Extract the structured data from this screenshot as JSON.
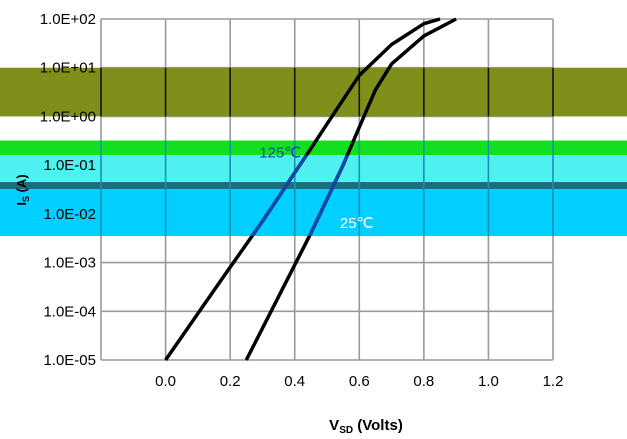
{
  "chart_data": {
    "type": "line",
    "title": "",
    "xlabel": "V",
    "xlabel_sub": "SD",
    "xlabel_suffix": " (Volts)",
    "ylabel": "I",
    "ylabel_sub": "S",
    "ylabel_suffix": " (A)",
    "xlim": [
      -0.2,
      1.2
    ],
    "ylim": [
      1e-05,
      100
    ],
    "y_scale": "log",
    "grid": true,
    "x_ticks": [
      0.0,
      0.2,
      0.4,
      0.6,
      0.8,
      1.0,
      1.2
    ],
    "x_tick_labels": [
      "0.0",
      "0.2",
      "0.4",
      "0.6",
      "0.8",
      "1.0",
      "1.2"
    ],
    "y_ticks": [
      1e-05,
      0.0001,
      0.001,
      0.01,
      0.1,
      1,
      10,
      100
    ],
    "y_tick_labels": [
      "1.0E-05",
      "1.0E-04",
      "1.0E-03",
      "1.0E-02",
      "1.0E-01",
      "1.0E+00",
      "1.0E+01",
      "1.0E+02"
    ],
    "series": [
      {
        "name": "125℃",
        "x": [
          0.0,
          0.1,
          0.2,
          0.3,
          0.35,
          0.4,
          0.45,
          0.5,
          0.55,
          0.6,
          0.7,
          0.8,
          0.85
        ],
        "y": [
          1e-05,
          9e-05,
          0.0008,
          0.007,
          0.022,
          0.07,
          0.22,
          0.7,
          2.2,
          7,
          30,
          80,
          100
        ]
      },
      {
        "name": "25℃",
        "x": [
          0.25,
          0.35,
          0.45,
          0.5,
          0.55,
          0.6,
          0.65,
          0.7,
          0.8,
          0.9
        ],
        "y": [
          1e-05,
          0.0002,
          0.004,
          0.02,
          0.1,
          0.6,
          3.5,
          12,
          45,
          100
        ]
      }
    ],
    "annotations": [
      {
        "text": "125℃",
        "x": 0.29,
        "y": 0.18
      },
      {
        "text": "25℃",
        "x": 0.54,
        "y": 0.0065
      }
    ],
    "overlay_bands": [
      {
        "y_from": 1.0,
        "y_to": 10,
        "color": "#808f1a"
      },
      {
        "y_from": 0.16,
        "y_to": 0.32,
        "color": "#10e020"
      },
      {
        "y_from": 0.045,
        "y_to": 0.16,
        "color": "#4ff0f0"
      },
      {
        "y_from": 0.032,
        "y_to": 0.045,
        "color": "#1a6f7f"
      },
      {
        "y_from": 0.0035,
        "y_to": 0.032,
        "color": "#00cfff"
      }
    ],
    "colors": {
      "curve": "#000000",
      "curve_in_overlay": "#1048a8",
      "grid": "#9a9a9a",
      "anno_dark": "#1048a8",
      "anno_light": "#ffffff"
    }
  }
}
